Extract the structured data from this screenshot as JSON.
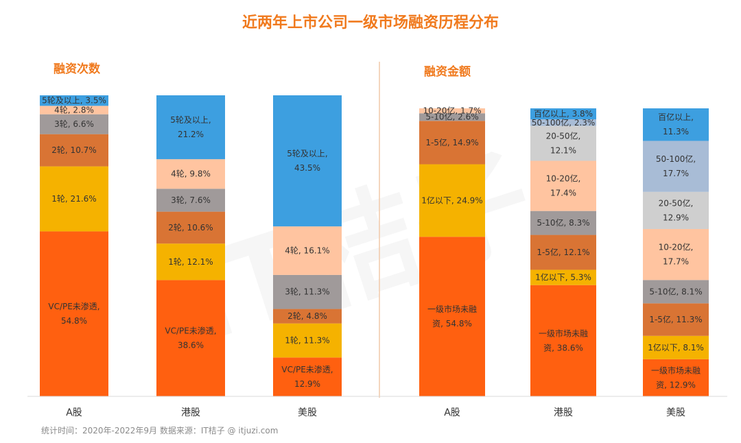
{
  "page_title": "近两年上市公司一级市场融资历程分布",
  "footnote": "统计时间：2020年-2022年9月    数据来源：IT桔子 @ itjuzi.com",
  "watermark": "IT桔子",
  "colors": {
    "title": "#f07a1e",
    "divider": "#f0c8a8",
    "axis": "#d9d9d9"
  },
  "chart_data": [
    {
      "type": "bar",
      "stacked": true,
      "normalized": true,
      "title": "融资次数",
      "categories": [
        "A股",
        "港股",
        "美股"
      ],
      "ylim": [
        0,
        100
      ],
      "series": [
        {
          "name": "VC/PE未渗透",
          "color": "#ff6010",
          "label_color": "#333333",
          "values": [
            54.8,
            38.6,
            12.9
          ],
          "labels": [
            "VC/PE未渗透,\n54.8%",
            "VC/PE未渗透,\n38.6%",
            "VC/PE未渗透,\n12.9%"
          ]
        },
        {
          "name": "1轮",
          "color": "#f5b200",
          "label_color": "#333333",
          "values": [
            21.6,
            12.1,
            11.3
          ],
          "labels": [
            "1轮, 21.6%",
            "1轮, 12.1%",
            "1轮, 11.3%"
          ]
        },
        {
          "name": "2轮",
          "color": "#d97434",
          "label_color": "#333333",
          "values": [
            10.7,
            10.6,
            4.8
          ],
          "labels": [
            "2轮, 10.7%",
            "2轮, 10.6%",
            "2轮, 4.8%"
          ]
        },
        {
          "name": "3轮",
          "color": "#a09a9a",
          "label_color": "#333333",
          "values": [
            6.6,
            7.6,
            11.3
          ],
          "labels": [
            "3轮, 6.6%",
            "3轮, 7.6%",
            "3轮, 11.3%"
          ]
        },
        {
          "name": "4轮",
          "color": "#ffc4a0",
          "label_color": "#333333",
          "values": [
            2.8,
            9.8,
            16.1
          ],
          "labels": [
            "4轮, 2.8%",
            "4轮, 9.8%",
            "4轮, 16.1%"
          ]
        },
        {
          "name": "5轮及以上",
          "color": "#3d9fe0",
          "label_color": "#333333",
          "values": [
            3.5,
            21.2,
            43.5
          ],
          "labels": [
            "5轮及以上, 3.5%",
            "5轮及以上,\n21.2%",
            "5轮及以上,\n43.5%"
          ]
        }
      ]
    },
    {
      "type": "bar",
      "stacked": true,
      "normalized": true,
      "title": "融资金额",
      "categories": [
        "A股",
        "港股",
        "美股"
      ],
      "ylim": [
        0,
        100
      ],
      "series": [
        {
          "name": "一级市场未融资",
          "color": "#ff6010",
          "label_color": "#333333",
          "values": [
            54.8,
            38.6,
            12.9
          ],
          "labels": [
            "一级市场未融\n资, 54.8%",
            "一级市场未融\n资, 38.6%",
            "一级市场未融\n资, 12.9%"
          ]
        },
        {
          "name": "1亿以下",
          "color": "#f5b200",
          "label_color": "#333333",
          "values": [
            24.9,
            5.3,
            8.1
          ],
          "labels": [
            "1亿以下, 24.9%",
            "1亿以下, 5.3%",
            "1亿以下, 8.1%"
          ]
        },
        {
          "name": "1-5亿",
          "color": "#d97434",
          "label_color": "#333333",
          "values": [
            14.9,
            12.1,
            11.3
          ],
          "labels": [
            "1-5亿, 14.9%",
            "1-5亿, 12.1%",
            "1-5亿, 11.3%"
          ]
        },
        {
          "name": "5-10亿",
          "color": "#a09a9a",
          "label_color": "#333333",
          "values": [
            2.6,
            8.3,
            8.1
          ],
          "labels": [
            "5-10亿, 2.6%",
            "5-10亿, 8.3%",
            "5-10亿, 8.1%"
          ]
        },
        {
          "name": "10-20亿",
          "color": "#ffc4a0",
          "label_color": "#333333",
          "values": [
            1.7,
            17.4,
            17.7
          ],
          "labels": [
            "10-20亿, 1.7%",
            "10-20亿,\n17.4%",
            "10-20亿,\n17.7%"
          ]
        },
        {
          "name": "20-50亿",
          "color": "#cfcfcf",
          "label_color": "#333333",
          "values": [
            0,
            12.1,
            12.9
          ],
          "labels": [
            "",
            "20-50亿,\n12.1%",
            "20-50亿,\n12.9%"
          ]
        },
        {
          "name": "50-100亿",
          "color": "#a8bcd6",
          "label_color": "#333333",
          "values": [
            0,
            2.3,
            17.7
          ],
          "labels": [
            "",
            "50-100亿, 2.3%",
            "50-100亿,\n17.7%"
          ]
        },
        {
          "name": "百亿以上",
          "color": "#3d9fe0",
          "label_color": "#333333",
          "values": [
            0,
            3.8,
            11.3
          ],
          "labels": [
            "",
            "百亿以上, 3.8%",
            "百亿以上,\n11.3%"
          ]
        }
      ]
    }
  ]
}
